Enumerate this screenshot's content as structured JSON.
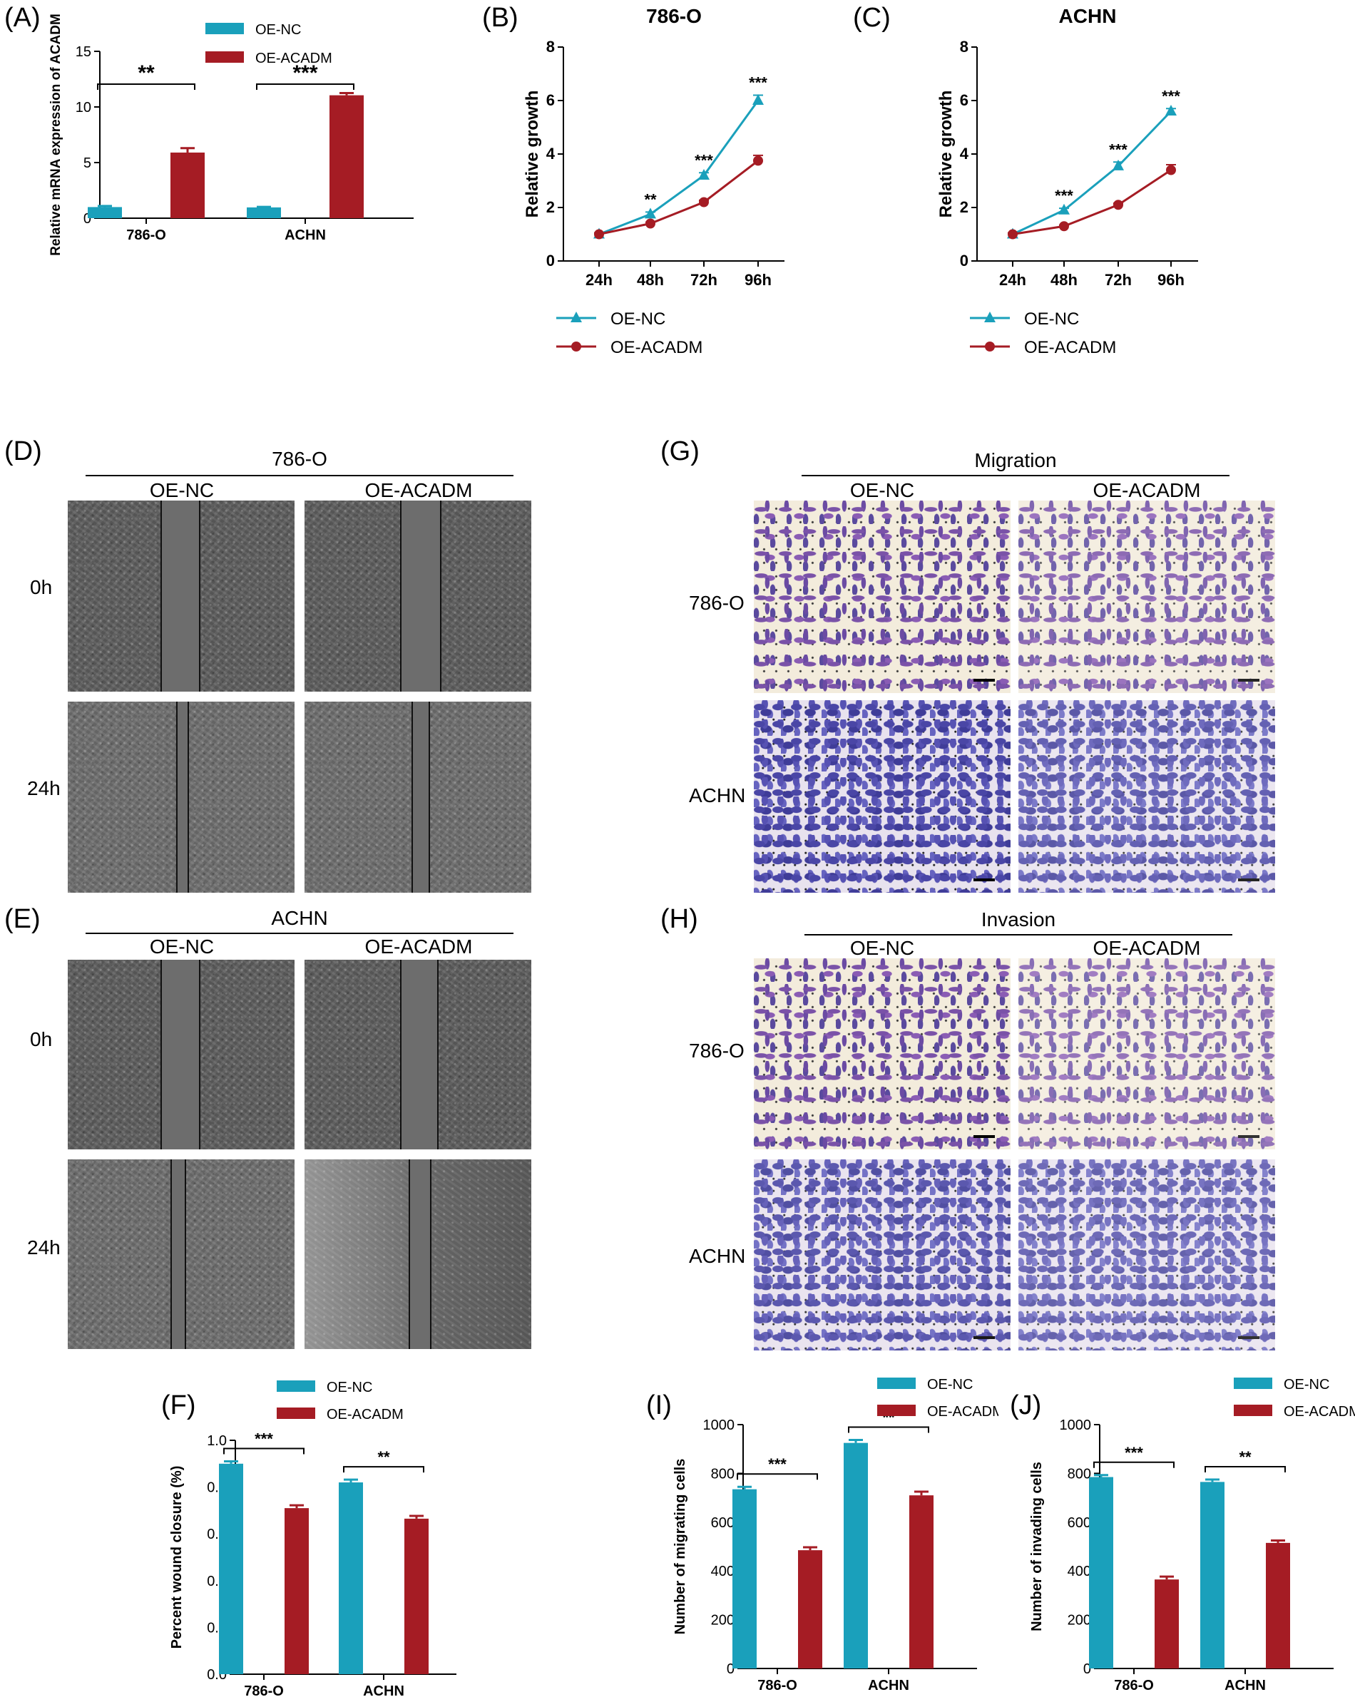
{
  "colors": {
    "oe_nc": "#1aa0bb",
    "oe_acadm": "#a51c24"
  },
  "panel_letters": {
    "A": "(A)",
    "B": "(B)",
    "C": "(C)",
    "D": "(D)",
    "E": "(E)",
    "F": "(F)",
    "G": "(G)",
    "H": "(H)",
    "I": "(I)",
    "J": "(J)"
  },
  "wound_d": {
    "group": "786-O",
    "cols": [
      "OE-NC",
      "OE-ACADM"
    ],
    "rows": [
      "0h",
      "24h"
    ]
  },
  "wound_e": {
    "group": "ACHN",
    "cols": [
      "OE-NC",
      "OE-ACADM"
    ],
    "rows": [
      "0h",
      "24h"
    ]
  },
  "transwell_g": {
    "group": "Migration",
    "cols": [
      "OE-NC",
      "OE-ACADM"
    ],
    "rows": [
      "786-O",
      "ACHN"
    ]
  },
  "transwell_h": {
    "group": "Invasion",
    "cols": [
      "OE-NC",
      "OE-ACADM"
    ],
    "rows": [
      "786-O",
      "ACHN"
    ]
  },
  "chart_data": [
    {
      "id": "A",
      "type": "bar",
      "title": "",
      "categories": [
        "786-O",
        "ACHN"
      ],
      "series": [
        {
          "name": "OE-NC",
          "values": [
            1.0,
            0.97
          ],
          "errors": [
            0.1,
            0.05
          ]
        },
        {
          "name": "OE-ACADM",
          "values": [
            5.9,
            11.05
          ],
          "errors": [
            0.4,
            0.2
          ]
        }
      ],
      "ylabel": "Relative mRNA expression of  ACADM",
      "xlabel": "",
      "ylim": [
        0,
        15
      ],
      "yticks": [
        0,
        5,
        10,
        15
      ],
      "significance": [
        "**",
        "***"
      ],
      "legend": "top"
    },
    {
      "id": "B",
      "type": "line",
      "title": "786-O",
      "x": [
        "24h",
        "48h",
        "72h",
        "96h"
      ],
      "series": [
        {
          "name": "OE-NC",
          "values": [
            1.0,
            1.75,
            3.2,
            6.0
          ],
          "errors": [
            0.05,
            0.08,
            0.1,
            0.2
          ],
          "marker": "triangle"
        },
        {
          "name": "OE-ACADM",
          "values": [
            1.0,
            1.4,
            2.2,
            3.75
          ],
          "errors": [
            0.05,
            0.05,
            0.07,
            0.2
          ],
          "marker": "circle"
        }
      ],
      "ylabel": "Relative growth",
      "xlabel": "",
      "ylim": [
        0,
        8
      ],
      "yticks": [
        0,
        2,
        4,
        6,
        8
      ],
      "significance": [
        "",
        "**",
        "***",
        "***"
      ],
      "legend": "bottom"
    },
    {
      "id": "C",
      "type": "line",
      "title": "ACHN",
      "x": [
        "24h",
        "48h",
        "72h",
        "96h"
      ],
      "series": [
        {
          "name": "OE-NC",
          "values": [
            1.0,
            1.9,
            3.55,
            5.6
          ],
          "errors": [
            0.05,
            0.07,
            0.15,
            0.1
          ],
          "marker": "triangle"
        },
        {
          "name": "OE-ACADM",
          "values": [
            1.0,
            1.3,
            2.1,
            3.4
          ],
          "errors": [
            0.05,
            0.04,
            0.06,
            0.2
          ],
          "marker": "circle"
        }
      ],
      "ylabel": "Relative growth",
      "xlabel": "",
      "ylim": [
        0,
        8
      ],
      "yticks": [
        0,
        2,
        4,
        6,
        8
      ],
      "significance": [
        "",
        "***",
        "***",
        "***"
      ],
      "legend": "bottom"
    },
    {
      "id": "F",
      "type": "bar",
      "title": "",
      "categories": [
        "786-O",
        "ACHN"
      ],
      "series": [
        {
          "name": "OE-NC",
          "values": [
            0.9,
            0.82
          ],
          "errors": [
            0.01,
            0.012
          ]
        },
        {
          "name": "OE-ACADM",
          "values": [
            0.71,
            0.665
          ],
          "errors": [
            0.012,
            0.012
          ]
        }
      ],
      "ylabel": "Percent wound closure (%)",
      "xlabel": "",
      "ylim": [
        0,
        1.0
      ],
      "yticks": [
        0.0,
        0.2,
        0.4,
        0.6,
        0.8,
        1.0
      ],
      "significance": [
        "***",
        "**"
      ],
      "legend": "top"
    },
    {
      "id": "I",
      "type": "bar",
      "title": "",
      "categories": [
        "786-O",
        "ACHN"
      ],
      "series": [
        {
          "name": "OE-NC",
          "values": [
            735,
            925
          ],
          "errors": [
            10,
            12
          ]
        },
        {
          "name": "OE-ACADM",
          "values": [
            485,
            710
          ],
          "errors": [
            12,
            15
          ]
        }
      ],
      "ylabel": "Number of migrating cells",
      "xlabel": "",
      "ylim": [
        0,
        1000
      ],
      "yticks": [
        0,
        200,
        400,
        600,
        800,
        1000
      ],
      "significance": [
        "***",
        "**"
      ],
      "legend": "top"
    },
    {
      "id": "J",
      "type": "bar",
      "title": "",
      "categories": [
        "786-O",
        "ACHN"
      ],
      "series": [
        {
          "name": "OE-NC",
          "values": [
            785,
            765
          ],
          "errors": [
            8,
            10
          ]
        },
        {
          "name": "OE-ACADM",
          "values": [
            365,
            515
          ],
          "errors": [
            12,
            10
          ]
        }
      ],
      "ylabel": "Number of invading cells",
      "xlabel": "",
      "ylim": [
        0,
        1000
      ],
      "yticks": [
        0,
        200,
        400,
        600,
        800,
        1000
      ],
      "significance": [
        "***",
        "**"
      ],
      "legend": "top"
    }
  ]
}
